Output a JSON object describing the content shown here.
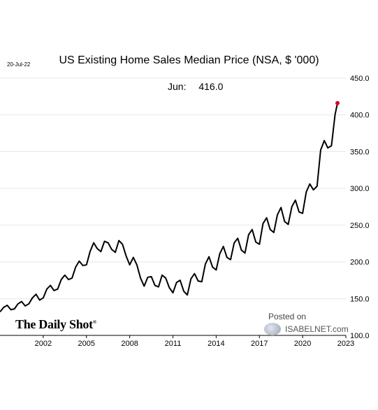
{
  "header": {
    "date": "20-Jul-22",
    "title": "US Existing Home Sales Median Price (NSA, $ '000)",
    "latest_label": "Jun:",
    "latest_value": "416.0"
  },
  "branding": {
    "daily_shot": "The Daily Shot",
    "posted_on": "Posted on",
    "isabelnet": "ISABELNET.com"
  },
  "colors": {
    "line": "#000000",
    "marker": "#e0001b",
    "grid": "#e6e6e6"
  },
  "chart_data": {
    "type": "line",
    "title": "US Existing Home Sales Median Price (NSA, $ '000)",
    "xlabel": "",
    "ylabel": "",
    "y_axis_side": "right",
    "ylim": [
      100,
      450
    ],
    "xlim": [
      1999.0,
      2023.0
    ],
    "y_ticks": [
      100,
      150,
      200,
      250,
      300,
      350,
      400,
      450
    ],
    "y_tick_labels": [
      "100.0",
      "150.0",
      "200.0",
      "250.0",
      "300.0",
      "350.0",
      "400.0",
      "450.0"
    ],
    "x_ticks": [
      2002,
      2005,
      2008,
      2011,
      2014,
      2017,
      2020,
      2023
    ],
    "x_tick_labels": [
      "2002",
      "2005",
      "2008",
      "2011",
      "2014",
      "2017",
      "2020",
      "2023"
    ],
    "grid": "horizontal",
    "series": [
      {
        "name": "",
        "x": [
          1999.0,
          1999.25,
          1999.5,
          1999.75,
          2000.0,
          2000.25,
          2000.5,
          2000.75,
          2001.0,
          2001.25,
          2001.5,
          2001.75,
          2002.0,
          2002.25,
          2002.5,
          2002.75,
          2003.0,
          2003.25,
          2003.5,
          2003.75,
          2004.0,
          2004.25,
          2004.5,
          2004.75,
          2005.0,
          2005.25,
          2005.5,
          2005.75,
          2006.0,
          2006.25,
          2006.5,
          2006.75,
          2007.0,
          2007.25,
          2007.5,
          2007.75,
          2008.0,
          2008.25,
          2008.5,
          2008.75,
          2009.0,
          2009.25,
          2009.5,
          2009.75,
          2010.0,
          2010.25,
          2010.5,
          2010.75,
          2011.0,
          2011.25,
          2011.5,
          2011.75,
          2012.0,
          2012.25,
          2012.5,
          2012.75,
          2013.0,
          2013.25,
          2013.5,
          2013.75,
          2014.0,
          2014.25,
          2014.5,
          2014.75,
          2015.0,
          2015.25,
          2015.5,
          2015.75,
          2016.0,
          2016.25,
          2016.5,
          2016.75,
          2017.0,
          2017.25,
          2017.5,
          2017.75,
          2018.0,
          2018.25,
          2018.5,
          2018.75,
          2019.0,
          2019.25,
          2019.5,
          2019.75,
          2020.0,
          2020.25,
          2020.5,
          2020.75,
          2021.0,
          2021.25,
          2021.5,
          2021.75,
          2022.0,
          2022.25,
          2022.42
        ],
        "values": [
          132,
          138,
          141,
          135,
          136,
          143,
          146,
          140,
          143,
          151,
          156,
          148,
          151,
          163,
          168,
          161,
          163,
          176,
          182,
          176,
          178,
          193,
          201,
          195,
          196,
          214,
          226,
          218,
          214,
          228,
          226,
          217,
          213,
          229,
          224,
          208,
          196,
          206,
          196,
          178,
          167,
          179,
          180,
          168,
          166,
          182,
          178,
          165,
          158,
          172,
          175,
          160,
          155,
          177,
          184,
          174,
          173,
          197,
          207,
          193,
          189,
          211,
          221,
          206,
          203,
          226,
          232,
          216,
          212,
          237,
          244,
          227,
          224,
          252,
          260,
          244,
          240,
          264,
          274,
          255,
          251,
          275,
          284,
          268,
          266,
          295,
          306,
          298,
          303,
          352,
          365,
          355,
          358,
          400,
          416
        ]
      }
    ],
    "highlight_point": {
      "x": 2022.42,
      "y": 416.0
    }
  }
}
